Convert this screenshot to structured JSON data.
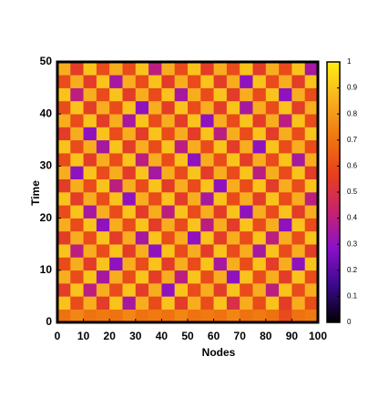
{
  "chart_data": {
    "type": "heatmap",
    "xlabel": "Nodes",
    "ylabel": "Time",
    "xlim": [
      0,
      100
    ],
    "ylim": [
      0,
      50
    ],
    "xticks": [
      0,
      10,
      20,
      30,
      40,
      50,
      60,
      70,
      80,
      90,
      100
    ],
    "yticks": [
      0,
      10,
      20,
      30,
      40,
      50
    ],
    "clim": [
      0,
      1
    ],
    "cticks": [
      0,
      0.1,
      0.2,
      0.3,
      0.4,
      0.5,
      0.6,
      0.7,
      0.8,
      0.9,
      1
    ],
    "colormap": [
      "#000000",
      "#3a0a8c",
      "#8a10c8",
      "#c8226e",
      "#e8401c",
      "#f07810",
      "#f8b020",
      "#ffee10"
    ],
    "z": [
      [
        0.7,
        0.75,
        0.7,
        0.72,
        0.7,
        0.75,
        0.7,
        0.72,
        0.7,
        0.75,
        0.7,
        0.72,
        0.7,
        0.75,
        0.7,
        0.72,
        0.7,
        0.6,
        0.7,
        0.72
      ],
      [
        0.9,
        0.6,
        0.85,
        0.55,
        0.9,
        0.35,
        0.85,
        0.6,
        0.9,
        0.55,
        0.85,
        0.6,
        0.9,
        0.5,
        0.85,
        0.6,
        0.9,
        0.55,
        0.85,
        0.6
      ],
      [
        0.55,
        0.9,
        0.4,
        0.85,
        0.6,
        0.9,
        0.55,
        0.85,
        0.3,
        0.9,
        0.6,
        0.85,
        0.55,
        0.9,
        0.6,
        0.85,
        0.4,
        0.9,
        0.6,
        0.85
      ],
      [
        0.85,
        0.6,
        0.9,
        0.35,
        0.85,
        0.6,
        0.9,
        0.55,
        0.85,
        0.4,
        0.9,
        0.6,
        0.85,
        0.3,
        0.9,
        0.6,
        0.85,
        0.55,
        0.9,
        0.6
      ],
      [
        0.6,
        0.85,
        0.55,
        0.9,
        0.3,
        0.85,
        0.6,
        0.9,
        0.55,
        0.85,
        0.6,
        0.9,
        0.35,
        0.85,
        0.6,
        0.9,
        0.55,
        0.85,
        0.3,
        0.9
      ],
      [
        0.9,
        0.4,
        0.85,
        0.6,
        0.9,
        0.55,
        0.85,
        0.3,
        0.9,
        0.6,
        0.85,
        0.55,
        0.9,
        0.6,
        0.85,
        0.35,
        0.9,
        0.6,
        0.85,
        0.55
      ],
      [
        0.55,
        0.85,
        0.6,
        0.9,
        0.55,
        0.85,
        0.35,
        0.9,
        0.6,
        0.85,
        0.3,
        0.9,
        0.55,
        0.85,
        0.6,
        0.9,
        0.4,
        0.85,
        0.6,
        0.9
      ],
      [
        0.85,
        0.6,
        0.9,
        0.3,
        0.85,
        0.6,
        0.9,
        0.55,
        0.85,
        0.6,
        0.9,
        0.4,
        0.85,
        0.55,
        0.9,
        0.6,
        0.85,
        0.3,
        0.9,
        0.6
      ],
      [
        0.6,
        0.9,
        0.35,
        0.85,
        0.6,
        0.9,
        0.55,
        0.85,
        0.4,
        0.9,
        0.6,
        0.85,
        0.55,
        0.9,
        0.3,
        0.85,
        0.6,
        0.9,
        0.55,
        0.85
      ],
      [
        0.9,
        0.55,
        0.85,
        0.6,
        0.9,
        0.3,
        0.85,
        0.6,
        0.9,
        0.55,
        0.85,
        0.35,
        0.9,
        0.6,
        0.85,
        0.55,
        0.9,
        0.6,
        0.85,
        0.4
      ],
      [
        0.55,
        0.85,
        0.6,
        0.9,
        0.4,
        0.85,
        0.6,
        0.9,
        0.55,
        0.85,
        0.6,
        0.9,
        0.3,
        0.85,
        0.6,
        0.9,
        0.55,
        0.85,
        0.6,
        0.9
      ],
      [
        0.85,
        0.3,
        0.9,
        0.6,
        0.85,
        0.55,
        0.9,
        0.35,
        0.85,
        0.6,
        0.9,
        0.55,
        0.85,
        0.6,
        0.9,
        0.4,
        0.85,
        0.6,
        0.9,
        0.55
      ],
      [
        0.6,
        0.9,
        0.55,
        0.85,
        0.6,
        0.9,
        0.4,
        0.85,
        0.6,
        0.9,
        0.3,
        0.85,
        0.6,
        0.9,
        0.55,
        0.85,
        0.6,
        0.9,
        0.35,
        0.85
      ],
      [
        0.9,
        0.6,
        0.85,
        0.35,
        0.9,
        0.55,
        0.85,
        0.6,
        0.9,
        0.4,
        0.85,
        0.6,
        0.9,
        0.55,
        0.85,
        0.3,
        0.9,
        0.6,
        0.85,
        0.6
      ],
      [
        0.55,
        0.85,
        0.3,
        0.9,
        0.6,
        0.85,
        0.55,
        0.9,
        0.6,
        0.85,
        0.55,
        0.9,
        0.4,
        0.85,
        0.6,
        0.9,
        0.55,
        0.85,
        0.6,
        0.9
      ],
      [
        0.85,
        0.6,
        0.9,
        0.55,
        0.85,
        0.35,
        0.9,
        0.6,
        0.85,
        0.55,
        0.9,
        0.3,
        0.85,
        0.6,
        0.9,
        0.55,
        0.85,
        0.4,
        0.9,
        0.6
      ],
      [
        0.6,
        0.9,
        0.55,
        0.85,
        0.6,
        0.9,
        0.3,
        0.85,
        0.55,
        0.9,
        0.6,
        0.85,
        0.55,
        0.9,
        0.35,
        0.85,
        0.6,
        0.9,
        0.55,
        0.85
      ],
      [
        0.9,
        0.4,
        0.85,
        0.6,
        0.9,
        0.55,
        0.85,
        0.6,
        0.9,
        0.35,
        0.85,
        0.6,
        0.9,
        0.55,
        0.85,
        0.6,
        0.9,
        0.3,
        0.85,
        0.6
      ],
      [
        0.6,
        0.85,
        0.55,
        0.9,
        0.35,
        0.85,
        0.6,
        0.9,
        0.55,
        0.85,
        0.6,
        0.9,
        0.55,
        0.85,
        0.3,
        0.9,
        0.6,
        0.85,
        0.55,
        0.9
      ],
      [
        0.85,
        0.55,
        0.9,
        0.6,
        0.85,
        0.6,
        0.9,
        0.4,
        0.85,
        0.6,
        0.9,
        0.55,
        0.85,
        0.6,
        0.9,
        0.55,
        0.85,
        0.6,
        0.9,
        0.35
      ]
    ]
  }
}
